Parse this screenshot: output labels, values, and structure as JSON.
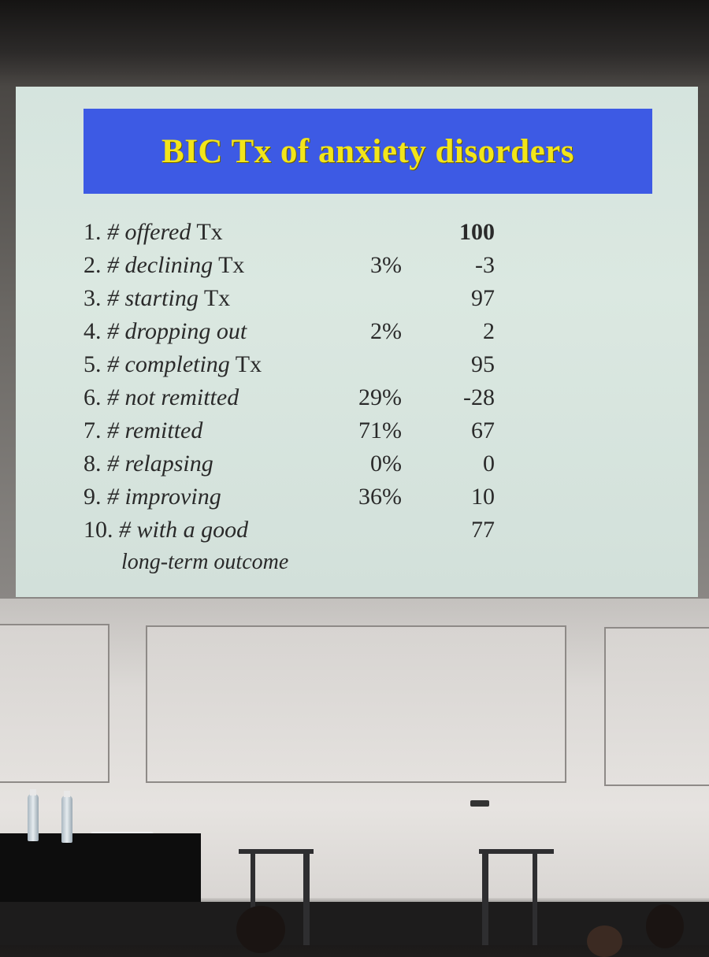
{
  "slide": {
    "title": "BIC Tx of anxiety disorders",
    "rows": [
      {
        "num": "1.",
        "italic": "# offered",
        "tail": " Tx",
        "pct": "",
        "value": "100",
        "bold": true
      },
      {
        "num": "2.",
        "italic": "# declining",
        "tail": " Tx",
        "pct": "3%",
        "value": "-3",
        "bold": false
      },
      {
        "num": "3.",
        "italic": "# starting",
        "tail": " Tx",
        "pct": "",
        "value": "97",
        "bold": false
      },
      {
        "num": "4.",
        "italic": "# dropping out",
        "tail": "",
        "pct": "2%",
        "value": "2",
        "bold": false
      },
      {
        "num": "5.",
        "italic": "# completing",
        "tail": " Tx",
        "pct": "",
        "value": "95",
        "bold": false
      },
      {
        "num": "6.",
        "italic": "# not remitted",
        "tail": "",
        "pct": "29%",
        "value": "-28",
        "bold": false
      },
      {
        "num": "7.",
        "italic": "# remitted",
        "tail": "",
        "pct": "71%",
        "value": "67",
        "bold": false
      },
      {
        "num": "8.",
        "italic": "# relapsing",
        "tail": "",
        "pct": "0%",
        "value": "0",
        "bold": false
      },
      {
        "num": "9.",
        "italic": "# improving",
        "tail": "",
        "pct": "36%",
        "value": "10",
        "bold": false
      },
      {
        "num": "10.",
        "italic": "# with a good",
        "tail": "",
        "pct": "",
        "value": "77",
        "bold": false
      }
    ],
    "row10_continuation": "long-term outcome"
  },
  "colors": {
    "title_band": "#3d5ae4",
    "title_text": "#f2e51a",
    "slide_bg": "#d5e4de"
  }
}
